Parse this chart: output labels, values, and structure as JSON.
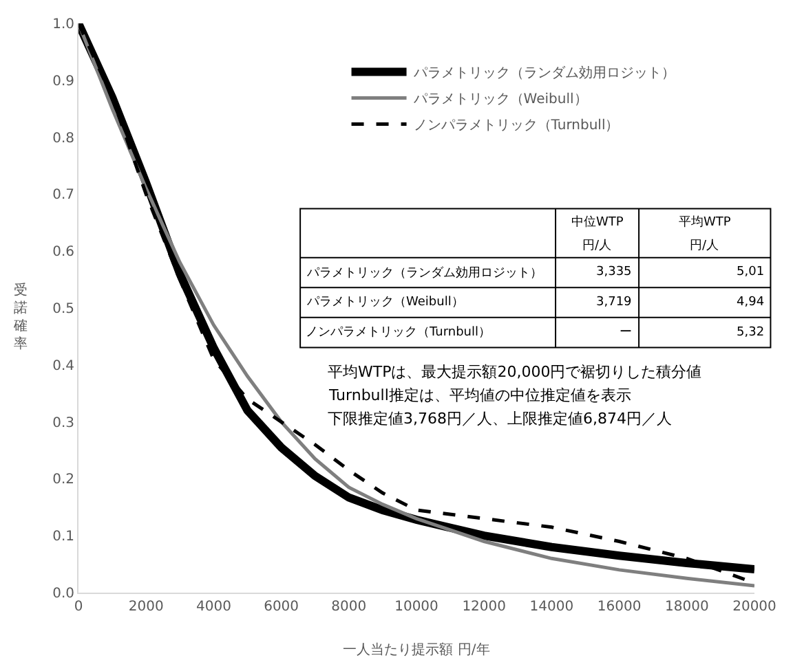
{
  "chart_data": {
    "type": "line",
    "xlabel": "一人当たり提示額 円/年",
    "ylabel": "受諾確率",
    "x": [
      0,
      1000,
      2000,
      3000,
      4000,
      5000,
      6000,
      7000,
      8000,
      9000,
      10000,
      12000,
      14000,
      16000,
      18000,
      20000
    ],
    "series": [
      {
        "name": "パラメトリック（ランダム効用ロジット）",
        "color": "#000000",
        "line_style": "solid",
        "values": [
          1.0,
          0.87,
          0.72,
          0.56,
          0.43,
          0.32,
          0.255,
          0.205,
          0.167,
          0.145,
          0.128,
          0.1,
          0.08,
          0.065,
          0.052,
          0.041
        ]
      },
      {
        "name": "パラメトリック（Weibull）",
        "color": "#7f7f7f",
        "line_style": "solid",
        "values": [
          1.0,
          0.85,
          0.71,
          0.58,
          0.47,
          0.38,
          0.3,
          0.235,
          0.185,
          0.155,
          0.13,
          0.09,
          0.06,
          0.04,
          0.025,
          0.012
        ]
      },
      {
        "name": "ノンパラメトリック（Turnbull）",
        "color": "#000000",
        "line_style": "dashed",
        "values": [
          1.0,
          0.87,
          0.7,
          0.55,
          0.41,
          0.34,
          0.3,
          0.26,
          0.215,
          0.175,
          0.145,
          0.13,
          0.115,
          0.09,
          0.06,
          0.017
        ]
      }
    ],
    "xlim": [
      0,
      20000
    ],
    "xticks": [
      0,
      2000,
      4000,
      6000,
      8000,
      10000,
      12000,
      14000,
      16000,
      18000,
      20000
    ],
    "ylim": [
      0,
      1.0
    ],
    "yticks": [
      {
        "value": 0,
        "label": "0.0"
      },
      0.1,
      0.2,
      0.3,
      0.4,
      0.5,
      0.6,
      0.7,
      0.8,
      0.9,
      {
        "value": 1.0,
        "label": "1.0"
      }
    ],
    "legend": "top",
    "marker": "none",
    "annotations": [
      "中位WTP",
      "円/人",
      "平均WTP",
      "円/人",
      "パラメトリック（ランダム効用ロジット）",
      "3,335",
      "5,01",
      "パラメトリック（Weibull）",
      "3,719",
      "4,94",
      "ノンパラメトリック（Turnbull）",
      "ー",
      "5,32",
      "平均WTPは、最大提示額20,000円で裾切りした積分値",
      "Turnbull推定は、平均値の中位推定値を表示",
      "下限推定値3,768円／人、上限推定値6,874円／人"
    ]
  }
}
